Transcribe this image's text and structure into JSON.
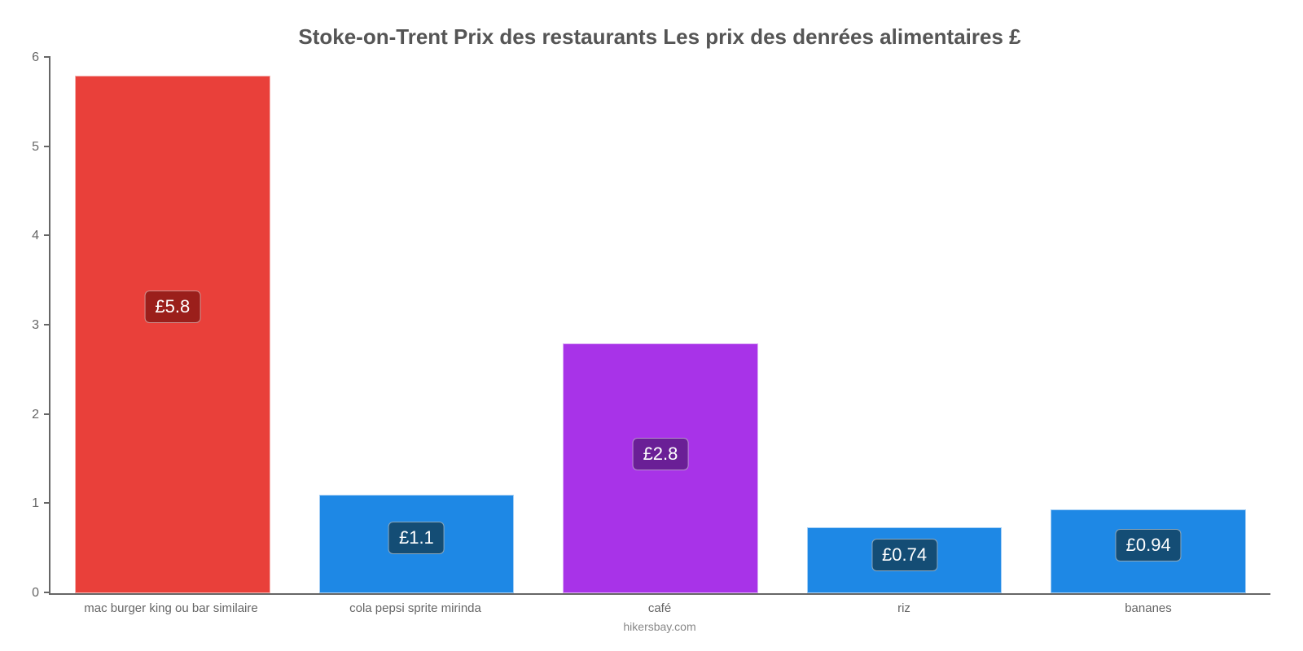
{
  "chart": {
    "type": "bar",
    "title": "Stoke-on-Trent Prix des restaurants Les prix des denrées alimentaires £",
    "title_fontsize": 26,
    "title_color": "#555555",
    "footer": "hikersbay.com",
    "footer_fontsize": 14,
    "footer_color": "#888888",
    "background_color": "#ffffff",
    "axis_color": "#666666",
    "ylim": [
      0,
      6
    ],
    "ytick_step": 1,
    "yticks": [
      "0",
      "1",
      "2",
      "3",
      "4",
      "5",
      "6"
    ],
    "ylabel_fontsize": 16,
    "xlabel_fontsize": 15,
    "bar_width_pct": 80,
    "value_label_fontsize": 22,
    "categories": [
      "mac burger king ou bar similaire",
      "cola pepsi sprite mirinda",
      "café",
      "riz",
      "bananes"
    ],
    "values": [
      5.8,
      1.1,
      2.8,
      0.74,
      0.94
    ],
    "value_labels": [
      "£5.8",
      "£1.1",
      "£2.8",
      "£0.74",
      "£0.94"
    ],
    "bar_colors": [
      "#e9403a",
      "#1e88e5",
      "#a833e8",
      "#1e88e5",
      "#1e88e5"
    ],
    "value_bg_colors": [
      "#9b1f1b",
      "#144d75",
      "#6a1f96",
      "#144d75",
      "#144d75"
    ]
  }
}
